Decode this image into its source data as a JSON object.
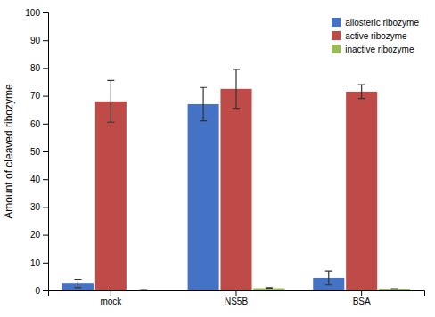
{
  "chart_data": {
    "type": "bar",
    "categories": [
      "mock",
      "NS5B",
      "BSA"
    ],
    "series": [
      {
        "name": "allosteric ribozyme",
        "color": "#4472C4",
        "values": [
          2.5,
          67.0,
          4.5
        ],
        "errors": [
          1.5,
          6.0,
          2.5
        ]
      },
      {
        "name": "active ribozyme",
        "color": "#BE4B48",
        "values": [
          68.0,
          72.5,
          71.5
        ],
        "errors": [
          7.5,
          7.0,
          2.5
        ]
      },
      {
        "name": "inactive ribozyme",
        "color": "#9BBB59",
        "values": [
          0.0,
          0.8,
          0.5
        ],
        "errors": [
          0.0,
          0.2,
          0.1
        ]
      }
    ],
    "ylabel": "Amount of cleaved ribozyme",
    "ylim": [
      0,
      100
    ],
    "yticks": [
      0,
      10,
      20,
      30,
      40,
      50,
      60,
      70,
      80,
      90,
      100
    ],
    "legend": "upper right",
    "grid": false
  }
}
